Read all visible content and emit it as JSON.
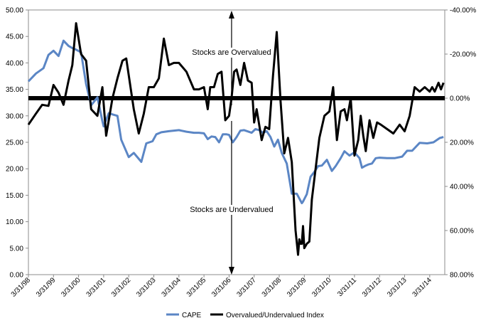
{
  "chart_data": {
    "type": "line",
    "left_axis": {
      "ylim": [
        0,
        50
      ],
      "ticks": [
        "0.00",
        "5.00",
        "10.00",
        "15.00",
        "20.00",
        "25.00",
        "30.00",
        "35.00",
        "40.00",
        "45.00",
        "50.00"
      ]
    },
    "right_axis": {
      "ylim": [
        80,
        -40
      ],
      "reversed": true,
      "ticks": [
        "-40.00%",
        "-20.00%",
        "0.00%",
        "20.00%",
        "40.00%",
        "60.00%",
        "80.00%"
      ]
    },
    "x_axis": {
      "range": [
        1998.0,
        2014.6
      ],
      "tick_labels": [
        "3/31/98",
        "3/31/99",
        "3/31/00",
        "3/31/01",
        "3/31/02",
        "3/31/03",
        "3/31/04",
        "3/31/05",
        "3/31/06",
        "3/31/07",
        "3/31/08",
        "3/31/09",
        "3/31/10",
        "3/31/11",
        "3/31/12",
        "3/31/13",
        "3/31/14"
      ]
    },
    "grid": false,
    "legend_position": "bottom",
    "series": [
      {
        "name": "CAPE",
        "color": "#5b86c5",
        "axis": "left",
        "x": [
          1998.0,
          1998.3,
          1998.6,
          1998.8,
          1999.0,
          1999.2,
          1999.4,
          1999.6,
          1999.75,
          1999.9,
          2000.1,
          2000.3,
          2000.5,
          2000.75,
          2000.95,
          2001.0,
          2001.2,
          2001.4,
          2001.55,
          2001.7,
          2002.0,
          2002.2,
          2002.5,
          2002.7,
          2002.95,
          2003.1,
          2003.3,
          2003.45,
          2003.6,
          2004.0,
          2004.3,
          2004.6,
          2004.8,
          2005.0,
          2005.15,
          2005.3,
          2005.45,
          2005.6,
          2005.75,
          2005.9,
          2006.0,
          2006.15,
          2006.3,
          2006.45,
          2006.6,
          2006.9,
          2007.05,
          2007.2,
          2007.35,
          2007.5,
          2007.65,
          2007.8,
          2007.95,
          2008.1,
          2008.3,
          2008.5,
          2008.7,
          2008.9,
          2008.95,
          2009.1,
          2009.25,
          2009.4,
          2009.55,
          2009.7,
          2009.9,
          2010.1,
          2010.25,
          2010.45,
          2010.6,
          2010.8,
          2011.0,
          2011.2,
          2011.3,
          2011.45,
          2011.55,
          2011.7,
          2011.85,
          2012.0,
          2012.3,
          2012.6,
          2012.9,
          2013.1,
          2013.3,
          2013.6,
          2013.9,
          2014.15,
          2014.4,
          2014.55
        ],
        "values": [
          36.5,
          38.0,
          39.0,
          41.5,
          42.3,
          41.3,
          44.2,
          43.2,
          42.8,
          42.5,
          42.0,
          36.0,
          32.0,
          33.5,
          29.0,
          28.0,
          30.5,
          30.2,
          30.0,
          25.5,
          22.2,
          23.0,
          21.3,
          24.8,
          25.2,
          26.5,
          26.9,
          27.0,
          27.1,
          27.3,
          27.0,
          26.8,
          26.8,
          26.7,
          25.6,
          26.1,
          26.0,
          25.0,
          26.5,
          26.5,
          26.4,
          25.0,
          26.0,
          27.2,
          27.3,
          26.8,
          27.5,
          27.3,
          26.8,
          27.1,
          26.0,
          24.2,
          25.5,
          23.0,
          21.0,
          15.3,
          15.3,
          13.5,
          13.8,
          15.2,
          18.5,
          19.4,
          20.5,
          20.6,
          21.7,
          19.6,
          20.5,
          22.0,
          23.3,
          22.5,
          23.1,
          22.0,
          20.2,
          20.6,
          20.8,
          21.0,
          22.0,
          22.1,
          22.0,
          22.0,
          22.3,
          23.4,
          23.4,
          24.9,
          24.8,
          25.0,
          25.8,
          26.0
        ]
      },
      {
        "name": "Overvalued/Undervalued Index",
        "color": "#000000",
        "axis": "right",
        "x": [
          1998.0,
          1998.3,
          1998.55,
          1998.8,
          1999.0,
          1999.2,
          1999.4,
          1999.6,
          1999.75,
          1999.9,
          2000.1,
          2000.3,
          2000.5,
          2000.75,
          2000.95,
          2001.1,
          2001.35,
          2001.55,
          2001.75,
          2001.9,
          2002.2,
          2002.4,
          2002.6,
          2002.8,
          2003.0,
          2003.2,
          2003.4,
          2003.6,
          2003.8,
          2004.0,
          2004.3,
          2004.6,
          2004.8,
          2005.0,
          2005.15,
          2005.25,
          2005.4,
          2005.55,
          2005.7,
          2005.85,
          2006.0,
          2006.1,
          2006.2,
          2006.3,
          2006.45,
          2006.6,
          2006.75,
          2006.9,
          2007.0,
          2007.1,
          2007.2,
          2007.3,
          2007.45,
          2007.6,
          2007.75,
          2007.9,
          2008.05,
          2008.2,
          2008.35,
          2008.5,
          2008.65,
          2008.75,
          2008.8,
          2008.85,
          2008.9,
          2008.95,
          2009.0,
          2009.1,
          2009.2,
          2009.3,
          2009.45,
          2009.6,
          2009.8,
          2010.0,
          2010.15,
          2010.3,
          2010.45,
          2010.6,
          2010.7,
          2010.85,
          2011.0,
          2011.15,
          2011.25,
          2011.35,
          2011.45,
          2011.6,
          2011.75,
          2011.9,
          2012.05,
          2012.3,
          2012.55,
          2012.8,
          2013.0,
          2013.2,
          2013.4,
          2013.6,
          2013.8,
          2014.0,
          2014.1,
          2014.2,
          2014.35,
          2014.45,
          2014.55
        ],
        "values": [
          12.0,
          7.0,
          3.0,
          3.5,
          -6.0,
          -2.5,
          3.0,
          -8.0,
          -15.0,
          -34.0,
          -20.0,
          -17.0,
          5.0,
          8.0,
          -5.0,
          17.0,
          0.0,
          -9.0,
          -17.0,
          -18.0,
          5.0,
          16.0,
          7.0,
          -5.0,
          -5.0,
          -9.0,
          -27.0,
          -15.0,
          -16.0,
          -16.0,
          -12.0,
          -4.0,
          -4.0,
          -5.0,
          5.0,
          -5.0,
          -5.0,
          -11.0,
          -12.0,
          10.0,
          8.0,
          0.0,
          -12.0,
          -13.0,
          -6.0,
          -16.0,
          -8.0,
          -7.0,
          11.0,
          5.0,
          12.0,
          19.0,
          13.0,
          14.0,
          -10.0,
          -30.0,
          1.0,
          25.0,
          18.0,
          29.0,
          60.0,
          71.0,
          64.0,
          66.0,
          66.0,
          58.0,
          68.0,
          66.0,
          65.0,
          46.0,
          32.0,
          18.0,
          8.0,
          6.0,
          -5.0,
          19.0,
          6.0,
          5.0,
          10.0,
          0.0,
          26.0,
          19.0,
          8.0,
          17.0,
          24.0,
          10.0,
          18.0,
          11.0,
          12.0,
          14.0,
          16.0,
          12.0,
          15.0,
          8.0,
          -5.0,
          -3.0,
          -5.0,
          -3.0,
          -5.0,
          -3.0,
          -7.0,
          -4.0,
          -7.0
        ]
      }
    ],
    "zero_line": {
      "axis": "right",
      "value": 0.0
    },
    "annotations": [
      {
        "text": "Stocks are Overvalued",
        "arrow": "up"
      },
      {
        "text": "Stocks are Undervalued",
        "arrow": "down"
      }
    ],
    "divider_x": 2006.1
  }
}
